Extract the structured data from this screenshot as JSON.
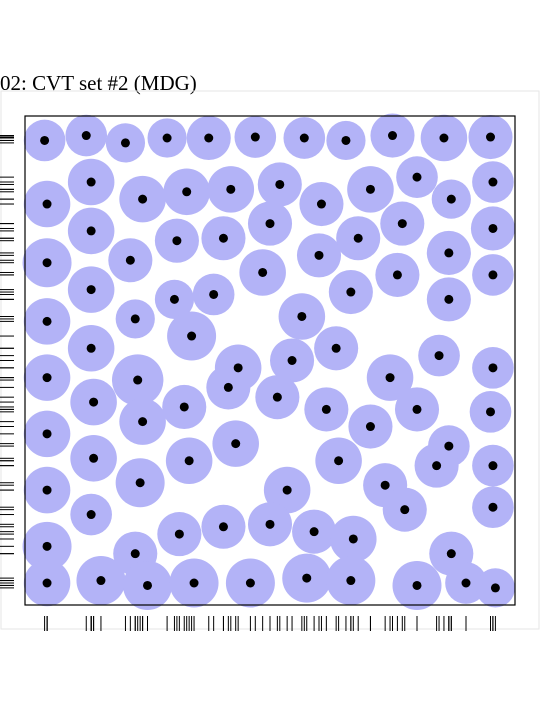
{
  "title": "02: CVT set #2 (MDG)",
  "colors": {
    "disk": "#b3b3f7",
    "point": "#000000",
    "frame": "#000000"
  },
  "chart_data": {
    "type": "scatter",
    "title": "02: CVT set #2 (MDG)",
    "xlim": [
      0,
      1
    ],
    "ylim": [
      0,
      1
    ],
    "grid": false,
    "points": [
      [
        0.04,
        0.95,
        0.085
      ],
      [
        0.125,
        0.96,
        0.085
      ],
      [
        0.205,
        0.945,
        0.08
      ],
      [
        0.29,
        0.955,
        0.08
      ],
      [
        0.375,
        0.955,
        0.09
      ],
      [
        0.47,
        0.957,
        0.085
      ],
      [
        0.57,
        0.955,
        0.085
      ],
      [
        0.655,
        0.95,
        0.08
      ],
      [
        0.75,
        0.96,
        0.09
      ],
      [
        0.855,
        0.955,
        0.095
      ],
      [
        0.95,
        0.957,
        0.09
      ],
      [
        0.045,
        0.82,
        0.095
      ],
      [
        0.135,
        0.865,
        0.095
      ],
      [
        0.24,
        0.83,
        0.095
      ],
      [
        0.33,
        0.845,
        0.095
      ],
      [
        0.42,
        0.85,
        0.095
      ],
      [
        0.52,
        0.86,
        0.09
      ],
      [
        0.605,
        0.82,
        0.09
      ],
      [
        0.705,
        0.85,
        0.095
      ],
      [
        0.8,
        0.875,
        0.085
      ],
      [
        0.87,
        0.83,
        0.08
      ],
      [
        0.955,
        0.865,
        0.085
      ],
      [
        0.045,
        0.7,
        0.1
      ],
      [
        0.135,
        0.765,
        0.095
      ],
      [
        0.215,
        0.705,
        0.09
      ],
      [
        0.31,
        0.745,
        0.09
      ],
      [
        0.405,
        0.75,
        0.09
      ],
      [
        0.5,
        0.78,
        0.09
      ],
      [
        0.6,
        0.715,
        0.09
      ],
      [
        0.68,
        0.75,
        0.09
      ],
      [
        0.77,
        0.78,
        0.09
      ],
      [
        0.865,
        0.72,
        0.09
      ],
      [
        0.955,
        0.77,
        0.09
      ],
      [
        0.045,
        0.58,
        0.095
      ],
      [
        0.135,
        0.645,
        0.095
      ],
      [
        0.225,
        0.585,
        0.08
      ],
      [
        0.305,
        0.625,
        0.08
      ],
      [
        0.385,
        0.635,
        0.085
      ],
      [
        0.485,
        0.68,
        0.095
      ],
      [
        0.565,
        0.59,
        0.095
      ],
      [
        0.665,
        0.64,
        0.09
      ],
      [
        0.76,
        0.675,
        0.09
      ],
      [
        0.865,
        0.625,
        0.09
      ],
      [
        0.955,
        0.675,
        0.085
      ],
      [
        0.045,
        0.465,
        0.095
      ],
      [
        0.135,
        0.525,
        0.095
      ],
      [
        0.23,
        0.46,
        0.105
      ],
      [
        0.34,
        0.55,
        0.1
      ],
      [
        0.435,
        0.485,
        0.095
      ],
      [
        0.545,
        0.5,
        0.09
      ],
      [
        0.635,
        0.525,
        0.09
      ],
      [
        0.745,
        0.465,
        0.095
      ],
      [
        0.845,
        0.51,
        0.085
      ],
      [
        0.955,
        0.485,
        0.085
      ],
      [
        0.045,
        0.35,
        0.095
      ],
      [
        0.14,
        0.415,
        0.095
      ],
      [
        0.24,
        0.375,
        0.095
      ],
      [
        0.325,
        0.405,
        0.09
      ],
      [
        0.415,
        0.445,
        0.09
      ],
      [
        0.515,
        0.425,
        0.09
      ],
      [
        0.615,
        0.4,
        0.09
      ],
      [
        0.705,
        0.365,
        0.09
      ],
      [
        0.8,
        0.4,
        0.09
      ],
      [
        0.865,
        0.325,
        0.085
      ],
      [
        0.95,
        0.395,
        0.085
      ],
      [
        0.045,
        0.235,
        0.095
      ],
      [
        0.14,
        0.3,
        0.095
      ],
      [
        0.235,
        0.25,
        0.1
      ],
      [
        0.335,
        0.295,
        0.095
      ],
      [
        0.43,
        0.33,
        0.095
      ],
      [
        0.535,
        0.235,
        0.095
      ],
      [
        0.64,
        0.295,
        0.095
      ],
      [
        0.735,
        0.245,
        0.09
      ],
      [
        0.84,
        0.285,
        0.09
      ],
      [
        0.955,
        0.285,
        0.085
      ],
      [
        0.045,
        0.12,
        0.1
      ],
      [
        0.135,
        0.185,
        0.085
      ],
      [
        0.225,
        0.105,
        0.09
      ],
      [
        0.315,
        0.145,
        0.09
      ],
      [
        0.405,
        0.16,
        0.09
      ],
      [
        0.5,
        0.165,
        0.09
      ],
      [
        0.59,
        0.15,
        0.09
      ],
      [
        0.67,
        0.135,
        0.095
      ],
      [
        0.775,
        0.195,
        0.09
      ],
      [
        0.87,
        0.105,
        0.09
      ],
      [
        0.955,
        0.2,
        0.085
      ],
      [
        0.045,
        0.045,
        0.095
      ],
      [
        0.155,
        0.05,
        0.1
      ],
      [
        0.25,
        0.04,
        0.1
      ],
      [
        0.345,
        0.045,
        0.1
      ],
      [
        0.46,
        0.045,
        0.1
      ],
      [
        0.575,
        0.055,
        0.1
      ],
      [
        0.665,
        0.05,
        0.1
      ],
      [
        0.8,
        0.04,
        0.1
      ],
      [
        0.9,
        0.045,
        0.085
      ],
      [
        0.96,
        0.035,
        0.08
      ]
    ],
    "point_format": "[x, y, disk_radius] in unit-square coordinates"
  }
}
